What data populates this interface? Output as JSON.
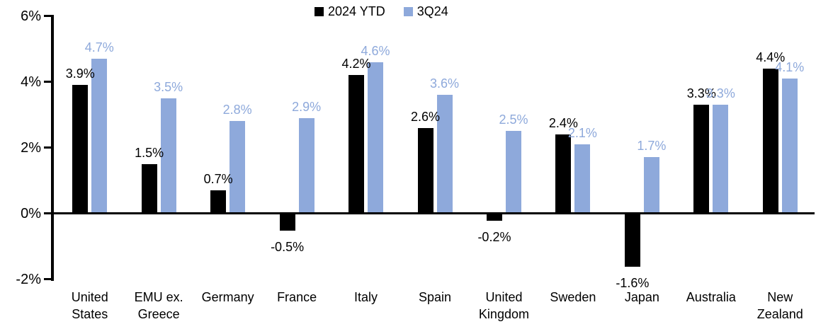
{
  "chart_data": {
    "type": "bar",
    "categories": [
      "United States",
      "EMU ex. Greece",
      "Germany",
      "France",
      "Italy",
      "Spain",
      "United Kingdom",
      "Sweden",
      "Japan",
      "Australia",
      "New Zealand"
    ],
    "series": [
      {
        "name": "2024 YTD",
        "color": "#000000",
        "values": [
          3.9,
          1.5,
          0.7,
          -0.5,
          4.2,
          2.6,
          -0.2,
          2.4,
          -1.6,
          3.3,
          4.4
        ],
        "labels": [
          "3.9%",
          "1.5%",
          "0.7%",
          "-0.5%",
          "4.2%",
          "2.6%",
          "-0.2%",
          "2.4%",
          "-1.6%",
          "3.3%",
          "4.4%"
        ]
      },
      {
        "name": "3Q24",
        "color": "#8EA9DB",
        "values": [
          4.7,
          3.5,
          2.8,
          2.9,
          4.6,
          3.6,
          2.5,
          2.1,
          1.7,
          3.3,
          4.1
        ],
        "labels": [
          "4.7%",
          "3.5%",
          "2.8%",
          "2.9%",
          "4.6%",
          "3.6%",
          "2.5%",
          "2.1%",
          "1.7%",
          "3.3%",
          "4.1%"
        ]
      }
    ],
    "title": "",
    "xlabel": "",
    "ylabel": "",
    "ylim": [
      -2,
      6
    ],
    "yticks": {
      "values": [
        6,
        4,
        2,
        0,
        -2
      ],
      "labels": [
        "6%",
        "4%",
        "2%",
        "0%",
        "-2%"
      ]
    },
    "value_label_format": "{v}%",
    "legend_position": "top-center",
    "grid": false
  }
}
